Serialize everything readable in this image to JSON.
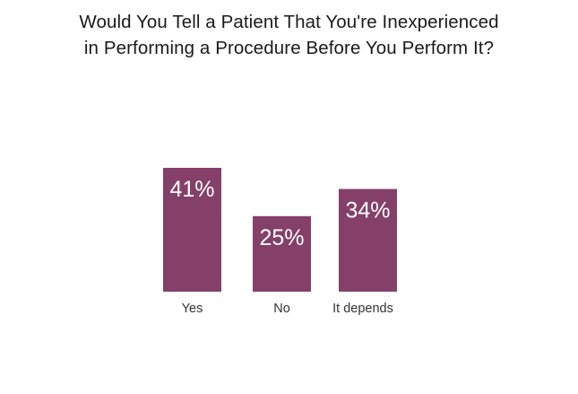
{
  "chart_data": {
    "type": "bar",
    "title_lines": [
      "Would You Tell a Patient That You're Inexperienced",
      "in Performing a Procedure Before You Perform It?"
    ],
    "categories": [
      "Yes",
      "No",
      "It depends"
    ],
    "values": [
      41,
      25,
      34
    ],
    "value_labels": [
      "41%",
      "25%",
      "34%"
    ],
    "unit": "%",
    "xlabel": "",
    "ylabel": "",
    "ylim": [
      0,
      100
    ],
    "grid": false,
    "legend": "none",
    "bar_color": "#854069",
    "value_label_color": "#ffffff",
    "category_label_color": "#333333",
    "title_color": "#1a1a1a"
  }
}
